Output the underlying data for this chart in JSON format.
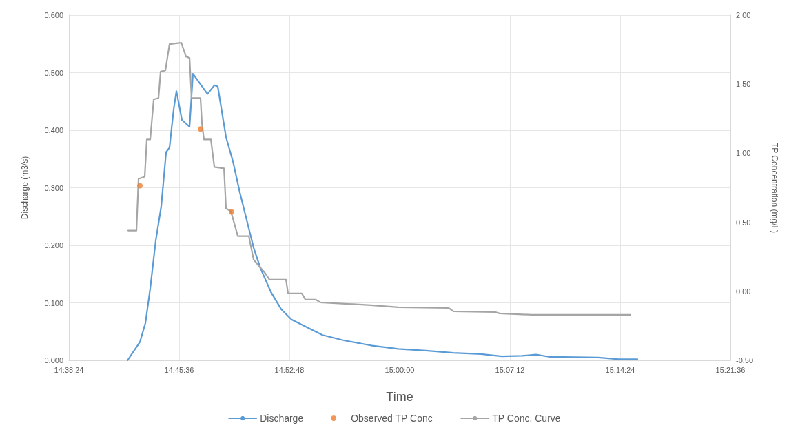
{
  "chart_data": {
    "type": "line",
    "xlabel": "Time",
    "ylabel": "Discharge (m3/s)",
    "y2label": "TP Concentration (mg/L)",
    "grid": true,
    "legend": "bottom",
    "line_style": "solid",
    "xlim": [
      14.64,
      15.36
    ],
    "xticks": [
      {
        "value": 14.64,
        "label": "14:38:24"
      },
      {
        "value": 14.76,
        "label": "14:45:36"
      },
      {
        "value": 14.88,
        "label": "14:52:48"
      },
      {
        "value": 15.0,
        "label": "15:00:00"
      },
      {
        "value": 15.12,
        "label": "15:07:12"
      },
      {
        "value": 15.24,
        "label": "15:14:24"
      },
      {
        "value": 15.36,
        "label": "15:21:36"
      }
    ],
    "ylim": [
      0,
      0.6
    ],
    "yticks": [
      {
        "value": 0,
        "label": "0.000"
      },
      {
        "value": 0.1,
        "label": "0.100"
      },
      {
        "value": 0.2,
        "label": "0.200"
      },
      {
        "value": 0.3,
        "label": "0.300"
      },
      {
        "value": 0.4,
        "label": "0.400"
      },
      {
        "value": 0.5,
        "label": "0.500"
      },
      {
        "value": 0.6,
        "label": "0.600"
      }
    ],
    "y2lim": [
      -0.5,
      2
    ],
    "y2ticks": [
      {
        "value": -0.5,
        "label": "-0.50"
      },
      {
        "value": 0,
        "label": "0.00"
      },
      {
        "value": 0.5,
        "label": "0.50"
      },
      {
        "value": 1,
        "label": "1.00"
      },
      {
        "value": 1.5,
        "label": "1.50"
      },
      {
        "value": 2,
        "label": "2.00"
      }
    ],
    "series": [
      {
        "name": "Discharge",
        "type": "line",
        "color": "#5b9bd5",
        "marker": "none",
        "x": [
          14.7038,
          14.7173,
          14.7233,
          14.7285,
          14.7345,
          14.7405,
          14.7458,
          14.7495,
          14.754,
          14.757,
          14.763,
          14.7713,
          14.775,
          14.7908,
          14.7983,
          14.802,
          14.811,
          14.8185,
          14.826,
          14.8335,
          14.841,
          14.8485,
          14.8598,
          14.871,
          14.8823,
          14.8935,
          14.916,
          14.9385,
          14.9685,
          14.9985,
          15.0285,
          15.0585,
          15.0885,
          15.111,
          15.1335,
          15.1485,
          15.1635,
          15.1785,
          15.216,
          15.2385,
          15.2588
        ],
        "values": [
          0,
          0.032,
          0.065,
          0.125,
          0.208,
          0.268,
          0.362,
          0.37,
          0.436,
          0.468,
          0.418,
          0.406,
          0.498,
          0.463,
          0.478,
          0.476,
          0.388,
          0.346,
          0.292,
          0.244,
          0.196,
          0.16,
          0.119,
          0.089,
          0.071,
          0.062,
          0.044,
          0.035,
          0.026,
          0.02,
          0.017,
          0.013,
          0.011,
          0.007,
          0.008,
          0.01,
          0.006,
          0.006,
          0.005,
          0.002,
          0.002
        ]
      },
      {
        "name": "Observed TP Conc",
        "type": "scatter",
        "axis": "y2",
        "color": "#ed7d31",
        "marker": "circle",
        "x": [
          14.7173,
          14.7832,
          14.817
        ],
        "values": [
          0.765,
          1.175,
          0.575
        ]
      },
      {
        "name": "TP Conc. Curve",
        "type": "line",
        "axis": "y2",
        "color": "#a5a5a5",
        "marker": "none",
        "x": [
          14.7045,
          14.7135,
          14.7158,
          14.7225,
          14.7248,
          14.7285,
          14.7323,
          14.7375,
          14.7398,
          14.745,
          14.7495,
          14.7623,
          14.7675,
          14.7713,
          14.7735,
          14.7832,
          14.7848,
          14.787,
          14.7945,
          14.7983,
          14.8088,
          14.811,
          14.8163,
          14.8238,
          14.8358,
          14.841,
          14.8538,
          14.8583,
          14.8763,
          14.8785,
          14.8935,
          14.8973,
          14.9085,
          14.9138,
          14.9685,
          14.9985,
          15.0533,
          15.0585,
          15.1035,
          15.1088,
          15.1433,
          15.2513
        ],
        "values": [
          0.44,
          0.44,
          0.815,
          0.83,
          1.1,
          1.1,
          1.39,
          1.4,
          1.59,
          1.6,
          1.79,
          1.8,
          1.7,
          1.69,
          1.4,
          1.4,
          1.215,
          1.1,
          1.1,
          0.9,
          0.89,
          0.6,
          0.58,
          0.4,
          0.4,
          0.23,
          0.13,
          0.085,
          0.085,
          -0.015,
          -0.015,
          -0.06,
          -0.06,
          -0.08,
          -0.1,
          -0.115,
          -0.12,
          -0.145,
          -0.15,
          -0.16,
          -0.17,
          -0.17
        ]
      }
    ]
  }
}
